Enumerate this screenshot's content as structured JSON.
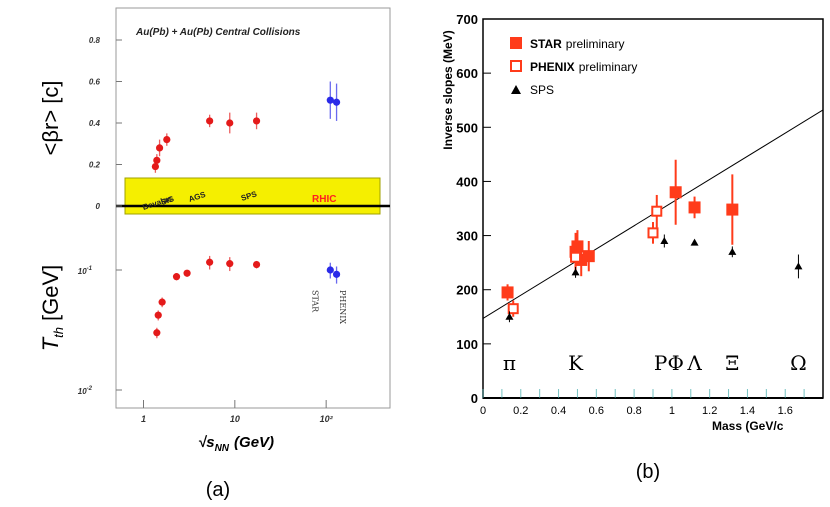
{
  "figure": {
    "panel_a_caption": "(a)",
    "panel_b_caption": "(b)"
  },
  "chart_data": [
    {
      "panel": "a",
      "type": "scatter",
      "title": "Au(Pb) + Au(Pb) Central Collisions",
      "xlabel_main": "√s",
      "xlabel_sub": "NN",
      "xlabel_unit": "(GeV)",
      "x_scale": "log",
      "xlim": [
        0.5,
        500
      ],
      "x_ticks": [
        {
          "value": 1,
          "label": "1"
        },
        {
          "value": 10,
          "label": "10"
        },
        {
          "value": 100,
          "label": "10²"
        }
      ],
      "upper": {
        "ylabel": "<βr> [c]",
        "ylim": [
          -0.08,
          0.9
        ],
        "y_ticks": [
          {
            "value": 0,
            "label": "0"
          },
          {
            "value": 0.2,
            "label": "0.2"
          },
          {
            "value": 0.4,
            "label": "0.4"
          },
          {
            "value": 0.6,
            "label": "0.6"
          },
          {
            "value": 0.8,
            "label": "0.8"
          }
        ],
        "series": [
          {
            "name": "AGS/SPS",
            "color": "#e41a1a",
            "points": [
              {
                "x": 1.35,
                "y": 0.19,
                "err": 0.03
              },
              {
                "x": 1.4,
                "y": 0.22,
                "err": 0.03
              },
              {
                "x": 1.5,
                "y": 0.28,
                "err": 0.04
              },
              {
                "x": 1.8,
                "y": 0.32,
                "err": 0.03
              },
              {
                "x": 5.3,
                "y": 0.41,
                "err": 0.03
              },
              {
                "x": 8.8,
                "y": 0.4,
                "err": 0.05
              },
              {
                "x": 17.3,
                "y": 0.41,
                "err": 0.04
              }
            ]
          },
          {
            "name": "RHIC",
            "color": "#2a2ae8",
            "points": [
              {
                "x": 111,
                "y": 0.51,
                "err": 0.09
              },
              {
                "x": 130,
                "y": 0.5,
                "err": 0.09
              }
            ]
          }
        ]
      },
      "band": {
        "color": "#f5ef00",
        "labels": [
          {
            "text": "Bevalac",
            "x": 1.0
          },
          {
            "text": "SIS",
            "x": 1.6
          },
          {
            "text": "AGS",
            "x": 3.2
          },
          {
            "text": "SPS",
            "x": 12
          }
        ],
        "rhic_label": "RHIC"
      },
      "lower": {
        "ylabel_main": "T",
        "ylabel_sub": "th",
        "ylabel_unit": "[GeV]",
        "y_scale": "log",
        "ylim": [
          0.009,
          0.23
        ],
        "y_ticks": [
          {
            "value": 0.1,
            "label": "10",
            "exp": "-1"
          },
          {
            "value": 0.01,
            "label": "10",
            "exp": "-2"
          }
        ],
        "series": [
          {
            "name": "AGS/SPS",
            "color": "#e41a1a",
            "points": [
              {
                "x": 1.4,
                "y": 0.03,
                "err": 0.003
              },
              {
                "x": 1.45,
                "y": 0.042,
                "err": 0.004
              },
              {
                "x": 1.6,
                "y": 0.054,
                "err": 0.005
              },
              {
                "x": 2.3,
                "y": 0.088,
                "err": 0.006
              },
              {
                "x": 3.0,
                "y": 0.094,
                "err": 0.006
              },
              {
                "x": 5.3,
                "y": 0.116,
                "err": 0.015
              },
              {
                "x": 8.8,
                "y": 0.113,
                "err": 0.015
              },
              {
                "x": 17.3,
                "y": 0.111,
                "err": 0.008
              }
            ]
          },
          {
            "name": "RHIC",
            "color": "#2a2ae8",
            "points": [
              {
                "x": 111,
                "y": 0.1,
                "err": 0.015
              },
              {
                "x": 130,
                "y": 0.092,
                "err": 0.015
              }
            ]
          }
        ],
        "annotations": [
          {
            "text": "STAR",
            "x": 111
          },
          {
            "text": "PHENIX",
            "x": 135
          }
        ]
      }
    },
    {
      "panel": "b",
      "type": "scatter",
      "title": "",
      "xlabel": "Mass (GeV/c",
      "ylabel": "Inverse slopes (MeV)",
      "xlim": [
        0,
        1.8
      ],
      "ylim": [
        0,
        700
      ],
      "x_ticks": [
        {
          "value": 0,
          "label": "0"
        },
        {
          "value": 0.2,
          "label": "0.2"
        },
        {
          "value": 0.4,
          "label": "0.4"
        },
        {
          "value": 0.6,
          "label": "0.6"
        },
        {
          "value": 0.8,
          "label": "0.8"
        },
        {
          "value": 1.0,
          "label": "1"
        },
        {
          "value": 1.2,
          "label": "1.2"
        },
        {
          "value": 1.4,
          "label": "1.4"
        },
        {
          "value": 1.6,
          "label": "1.6"
        }
      ],
      "y_ticks": [
        {
          "value": 100,
          "label": "100"
        },
        {
          "value": 200,
          "label": "200"
        },
        {
          "value": 300,
          "label": "300"
        },
        {
          "value": 400,
          "label": "400"
        },
        {
          "value": 500,
          "label": "500"
        },
        {
          "value": 600,
          "label": "600"
        },
        {
          "value": 700,
          "label": "700"
        }
      ],
      "legend": [
        {
          "marker": "filled-square",
          "bold": "STAR",
          "text": "preliminary",
          "color": "#ff3b1a"
        },
        {
          "marker": "open-square",
          "bold": "PHENIX",
          "text": "preliminary",
          "color": "#ff3b1a"
        },
        {
          "marker": "triangle",
          "bold": "",
          "text": "SPS",
          "color": "#000000"
        }
      ],
      "fit_line": {
        "x": [
          0,
          1.8
        ],
        "y": [
          147,
          532
        ]
      },
      "particles": [
        {
          "label": "π",
          "x": 0.14
        },
        {
          "label": "K",
          "x": 0.49
        },
        {
          "label": "P",
          "x": 0.94
        },
        {
          "label": "Φ",
          "x": 1.02
        },
        {
          "label": "Λ",
          "x": 1.12
        },
        {
          "label": "Ξ",
          "x": 1.32
        },
        {
          "label": "Ω",
          "x": 1.67
        }
      ],
      "series": [
        {
          "name": "STAR preliminary",
          "marker": "filled-square",
          "color": "#ff3b1a",
          "points": [
            {
              "x": 0.13,
              "y": 195,
              "err": 15
            },
            {
              "x": 0.49,
              "y": 270,
              "err": 35
            },
            {
              "x": 0.5,
              "y": 280,
              "err": 30
            },
            {
              "x": 0.52,
              "y": 255,
              "err": 30
            },
            {
              "x": 0.56,
              "y": 262,
              "err": 28
            },
            {
              "x": 1.02,
              "y": 380,
              "err": 60
            },
            {
              "x": 1.12,
              "y": 352,
              "err": 20
            },
            {
              "x": 1.32,
              "y": 348,
              "err": 65
            }
          ]
        },
        {
          "name": "PHENIX preliminary",
          "marker": "open-square",
          "color": "#ff3b1a",
          "points": [
            {
              "x": 0.16,
              "y": 165,
              "err": 15
            },
            {
              "x": 0.49,
              "y": 260,
              "err": 20
            },
            {
              "x": 0.9,
              "y": 305,
              "err": 20
            },
            {
              "x": 0.92,
              "y": 345,
              "err": 30
            }
          ]
        },
        {
          "name": "SPS",
          "marker": "triangle",
          "color": "#000000",
          "points": [
            {
              "x": 0.14,
              "y": 150,
              "err": 10
            },
            {
              "x": 0.49,
              "y": 232,
              "err": 10
            },
            {
              "x": 0.96,
              "y": 290,
              "err": 12
            },
            {
              "x": 1.12,
              "y": 287,
              "err": 5
            },
            {
              "x": 1.32,
              "y": 270,
              "err": 10
            },
            {
              "x": 1.67,
              "y": 243,
              "err": 22
            }
          ]
        }
      ]
    }
  ]
}
